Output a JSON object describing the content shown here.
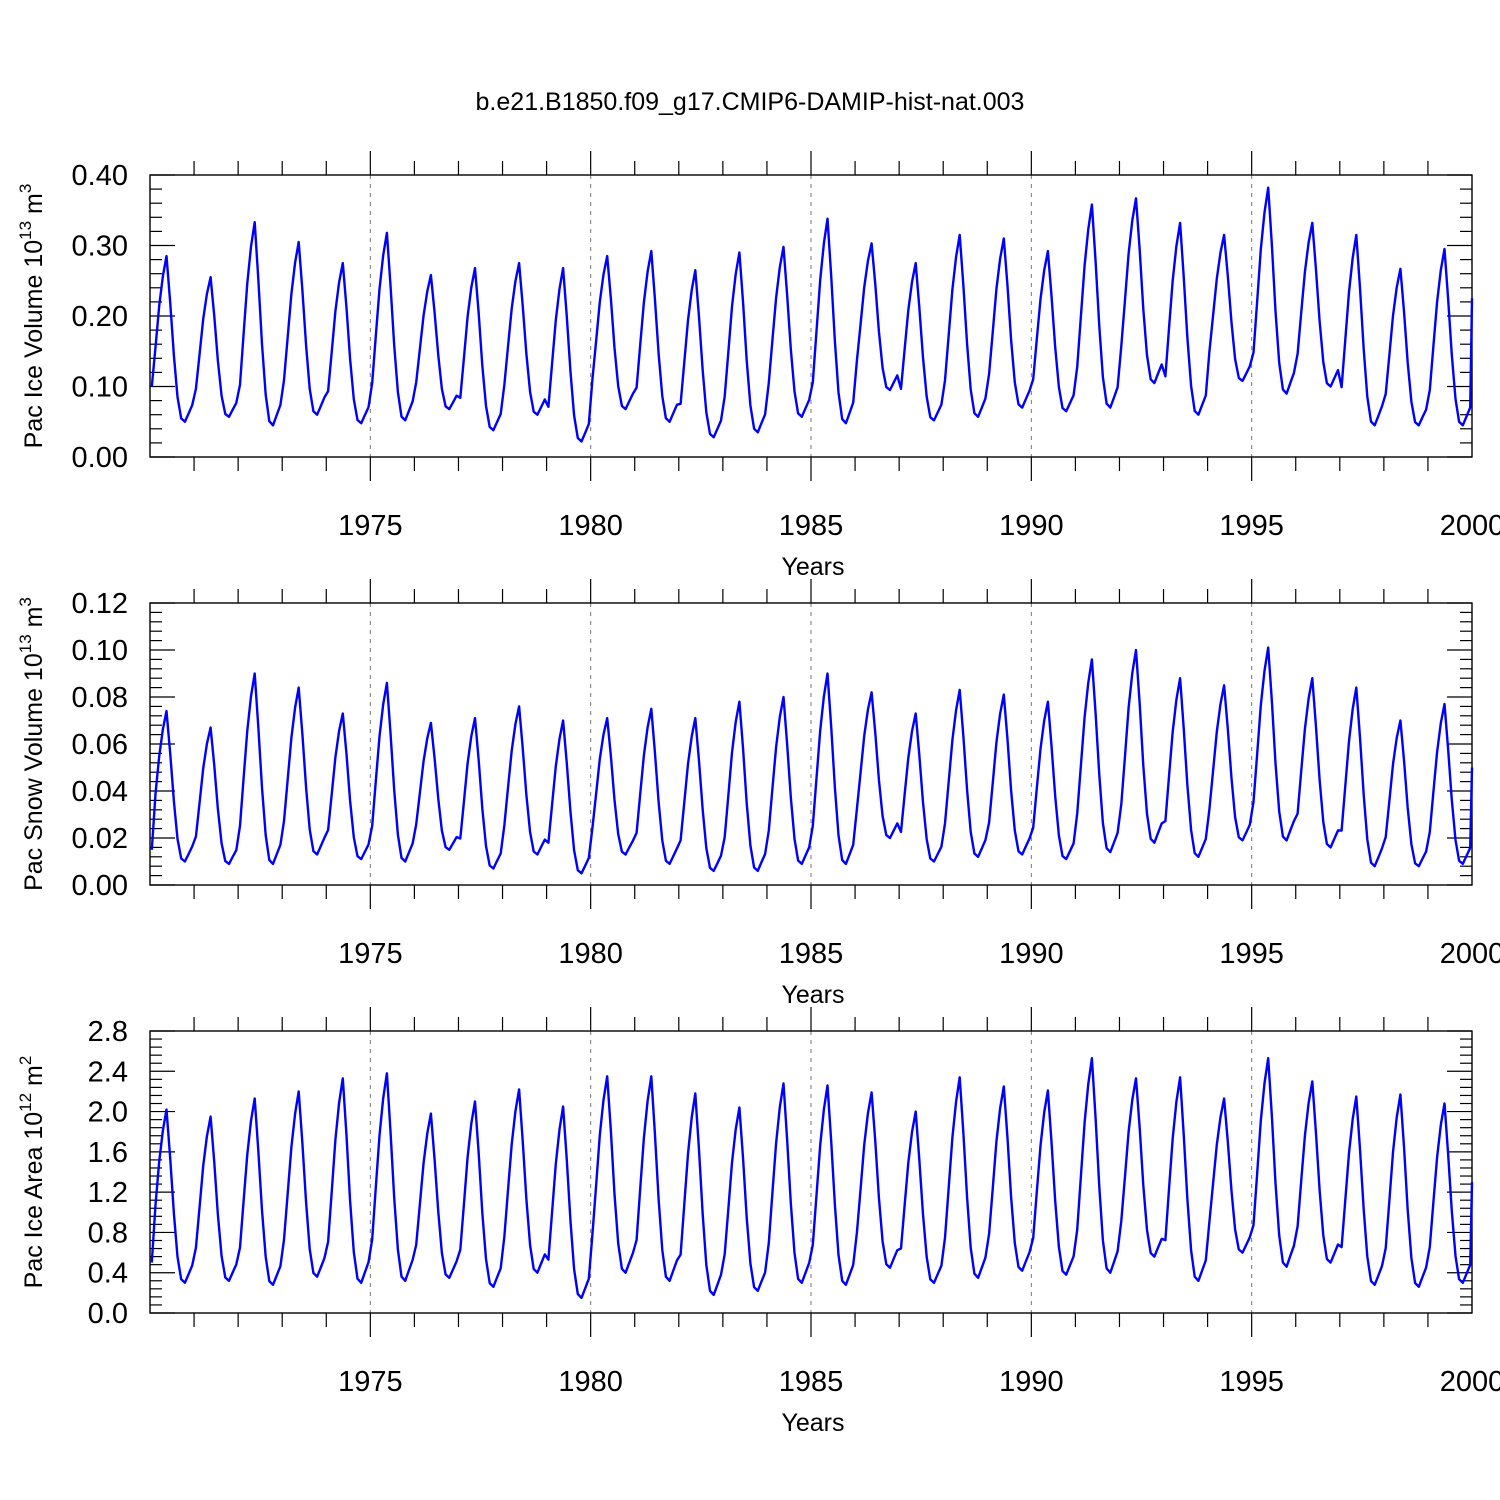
{
  "title": "b.e21.B1850.f09_g17.CMIP6-DAMIP-hist-nat.003",
  "colors": {
    "series": "#0000ff",
    "axes": "#000000",
    "grid": "#777777"
  },
  "chart_data": [
    {
      "type": "line",
      "xlabel": "Years",
      "ylabel_main": "Pac Ice Volume 10",
      "ylabel_exp": "13",
      "ylabel_unit": " m",
      "ylabel_unit_exp": "3",
      "xlim": [
        1970,
        2000
      ],
      "ylim": [
        0,
        0.4
      ],
      "xticks": [
        1975,
        1980,
        1985,
        1990,
        1995,
        2000
      ],
      "xtick_labels": [
        "1975",
        "1980",
        "1985",
        "1990",
        "1995",
        "2000"
      ],
      "yticks": [
        0,
        0.1,
        0.2,
        0.3,
        0.4
      ],
      "ytick_labels": [
        "0.00",
        "0.10",
        "0.20",
        "0.30",
        "0.40"
      ],
      "grid": "vertical dashed at x ticks",
      "minima": [
        0.05,
        0.057,
        0.045,
        0.06,
        0.048,
        0.052,
        0.068,
        0.038,
        0.06,
        0.022,
        0.068,
        0.05,
        0.028,
        0.035,
        0.057,
        0.048,
        0.095,
        0.052,
        0.057,
        0.07,
        0.065,
        0.07,
        0.105,
        0.06,
        0.108,
        0.09,
        0.1,
        0.045,
        0.045,
        0.045
      ],
      "maxima": [
        0.285,
        0.255,
        0.333,
        0.305,
        0.275,
        0.318,
        0.258,
        0.268,
        0.275,
        0.268,
        0.285,
        0.292,
        0.265,
        0.29,
        0.298,
        0.338,
        0.303,
        0.275,
        0.315,
        0.31,
        0.292,
        0.358,
        0.367,
        0.332,
        0.315,
        0.382,
        0.332,
        0.315,
        0.267,
        0.295
      ],
      "start_value": 0.1,
      "end_value": 0.225
    },
    {
      "type": "line",
      "xlabel": "Years",
      "ylabel_main": "Pac Snow Volume 10",
      "ylabel_exp": "13",
      "ylabel_unit": " m",
      "ylabel_unit_exp": "3",
      "xlim": [
        1970,
        2000
      ],
      "ylim": [
        0,
        0.12
      ],
      "xticks": [
        1975,
        1980,
        1985,
        1990,
        1995,
        2000
      ],
      "xtick_labels": [
        "1975",
        "1980",
        "1985",
        "1990",
        "1995",
        "2000"
      ],
      "yticks": [
        0,
        0.02,
        0.04,
        0.06,
        0.08,
        0.1,
        0.12
      ],
      "ytick_labels": [
        "0.00",
        "0.02",
        "0.04",
        "0.06",
        "0.08",
        "0.10",
        "0.12"
      ],
      "grid": "vertical dashed at x ticks",
      "minima": [
        0.01,
        0.009,
        0.009,
        0.013,
        0.011,
        0.01,
        0.015,
        0.007,
        0.013,
        0.005,
        0.013,
        0.009,
        0.006,
        0.006,
        0.009,
        0.009,
        0.02,
        0.01,
        0.012,
        0.013,
        0.011,
        0.014,
        0.018,
        0.012,
        0.019,
        0.019,
        0.016,
        0.008,
        0.008,
        0.009
      ],
      "maxima": [
        0.074,
        0.067,
        0.09,
        0.084,
        0.073,
        0.086,
        0.069,
        0.071,
        0.076,
        0.07,
        0.071,
        0.075,
        0.071,
        0.078,
        0.08,
        0.09,
        0.082,
        0.073,
        0.083,
        0.081,
        0.078,
        0.096,
        0.1,
        0.088,
        0.085,
        0.101,
        0.088,
        0.084,
        0.07,
        0.077
      ],
      "start_value": 0.015,
      "end_value": 0.05
    },
    {
      "type": "line",
      "xlabel": "Years",
      "ylabel_main": "Pac Ice Area 10",
      "ylabel_exp": "12",
      "ylabel_unit": " m",
      "ylabel_unit_exp": "2",
      "xlim": [
        1970,
        2000
      ],
      "ylim": [
        0,
        2.8
      ],
      "xticks": [
        1975,
        1980,
        1985,
        1990,
        1995,
        2000
      ],
      "xtick_labels": [
        "1975",
        "1980",
        "1985",
        "1990",
        "1995",
        "2000"
      ],
      "yticks": [
        0,
        0.4,
        0.8,
        1.2,
        1.6,
        2.0,
        2.4,
        2.8
      ],
      "ytick_labels": [
        "0.0",
        "0.4",
        "0.8",
        "1.2",
        "1.6",
        "2.0",
        "2.4",
        "2.8"
      ],
      "grid": "vertical dashed at x ticks",
      "minima": [
        0.3,
        0.32,
        0.28,
        0.36,
        0.3,
        0.32,
        0.35,
        0.26,
        0.4,
        0.15,
        0.4,
        0.32,
        0.18,
        0.22,
        0.3,
        0.28,
        0.45,
        0.3,
        0.35,
        0.42,
        0.38,
        0.4,
        0.56,
        0.32,
        0.6,
        0.46,
        0.5,
        0.28,
        0.26,
        0.3
      ],
      "maxima": [
        2.02,
        1.95,
        2.13,
        2.2,
        2.33,
        2.38,
        1.98,
        2.1,
        2.22,
        2.05,
        2.35,
        2.35,
        2.18,
        2.04,
        2.28,
        2.26,
        2.19,
        2.0,
        2.34,
        2.25,
        2.21,
        2.53,
        2.33,
        2.34,
        2.13,
        2.53,
        2.3,
        2.15,
        2.17,
        2.08
      ],
      "start_value": 0.5,
      "end_value": 1.3
    }
  ]
}
